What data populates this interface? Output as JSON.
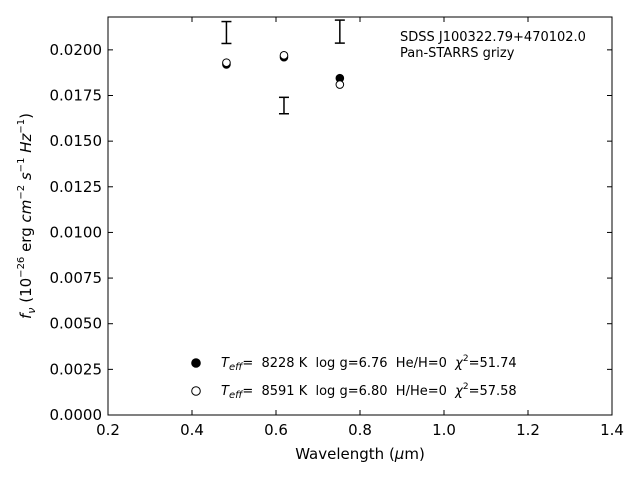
{
  "chart_data": {
    "type": "scatter",
    "annotation": [
      "SDSS J100322.79+470102.0",
      "Pan-STARRS grizy"
    ],
    "xlabel": {
      "main": "Wavelength (",
      "sym": "μ",
      "rest": "m)"
    },
    "ylabel": {
      "f": "f",
      "nu": "ν",
      "open": " (10",
      "exp1": "−26",
      "mid": " erg ",
      "cm": "cm",
      "exp2": "−2",
      "s": " s",
      "exp3": "−1",
      "hz": " Hz",
      "exp4": "−1",
      "close": ")"
    },
    "xlim": [
      0.2,
      1.4
    ],
    "ylim": [
      0.0,
      0.0218
    ],
    "xticks": [
      "0.2",
      "0.4",
      "0.6",
      "0.8",
      "1.0",
      "1.2",
      "1.4"
    ],
    "yticks": [
      "0.0000",
      "0.0025",
      "0.0050",
      "0.0075",
      "0.0100",
      "0.0125",
      "0.0150",
      "0.0175",
      "0.0200"
    ],
    "observed": [
      {
        "x": 0.482,
        "y": 0.02095,
        "yerr": 0.0006
      },
      {
        "x": 0.619,
        "y": 0.01695,
        "yerr": 0.00045
      },
      {
        "x": 0.752,
        "y": 0.021,
        "yerr": 0.00063
      }
    ],
    "series": [
      {
        "marker": "filled",
        "x": [
          0.482,
          0.619,
          0.752
        ],
        "y": [
          0.0192,
          0.0196,
          0.01845
        ],
        "legend": {
          "teff_label": "T",
          "teff_sub": "eff",
          "values": "=  8228 K  log g=6.76  He/H=0  ",
          "chi": "χ",
          "chi_sup": "2",
          "chi_val": "=51.74"
        }
      },
      {
        "marker": "open",
        "x": [
          0.482,
          0.619,
          0.752
        ],
        "y": [
          0.0193,
          0.0197,
          0.0181
        ],
        "legend": {
          "teff_label": "T",
          "teff_sub": "eff",
          "values": "=  8591 K  log g=6.80  H/He=0  ",
          "chi": "χ",
          "chi_sup": "2",
          "chi_val": "=57.58"
        }
      }
    ],
    "grid": false,
    "legend_position": "bottom-center"
  }
}
